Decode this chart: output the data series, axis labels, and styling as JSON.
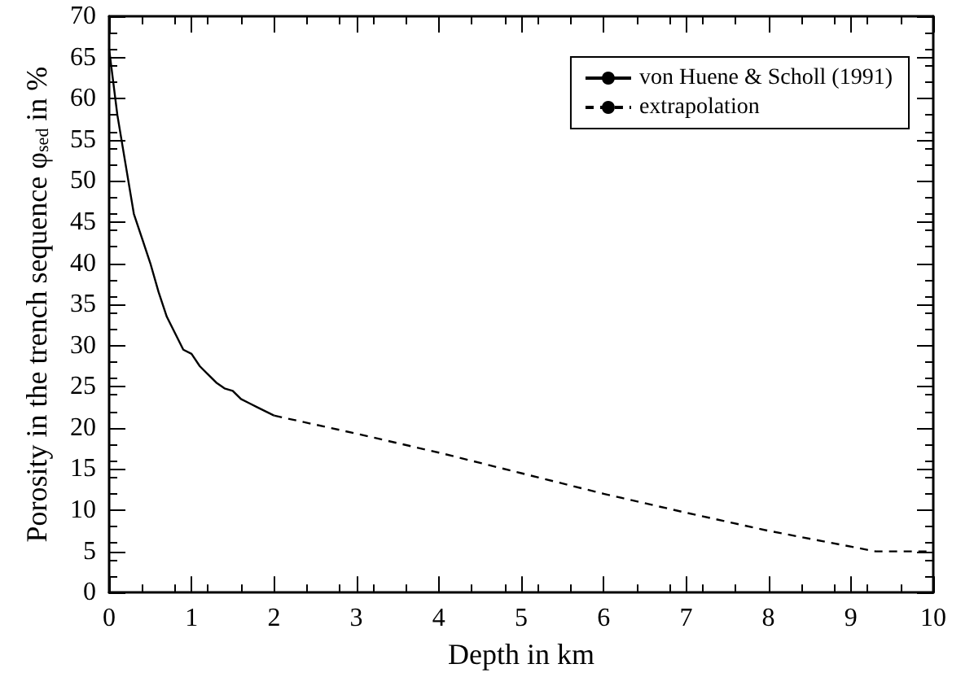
{
  "chart_data": {
    "type": "line",
    "xlabel": "Depth in km",
    "ylabel": "Porosity in the trench sequence φ$_{sed}$ in %",
    "xlim": [
      0,
      10
    ],
    "xticks": [
      0,
      1,
      2,
      3,
      4,
      5,
      6,
      7,
      8,
      9,
      10
    ],
    "ylim": [
      0,
      70
    ],
    "yticks": [
      0,
      5,
      10,
      15,
      20,
      25,
      30,
      35,
      40,
      45,
      50,
      55,
      60,
      65,
      70
    ],
    "legend": "top right",
    "grid": false,
    "marker": "none",
    "series": [
      {
        "name": "von Huene & Scholl (1991)",
        "color": "#000000",
        "line_style": "solid",
        "x": [
          0,
          0.05,
          0.1,
          0.2,
          0.3,
          0.4,
          0.5,
          0.6,
          0.7,
          0.8,
          0.9,
          1.0,
          1.1,
          1.2,
          1.3,
          1.4,
          1.5,
          1.6,
          1.7,
          1.8,
          1.9,
          2.0
        ],
        "values": [
          66,
          62,
          58,
          52,
          46,
          43,
          40,
          36.5,
          33.5,
          31.5,
          29.5,
          29,
          27.5,
          26.5,
          25.5,
          24.8,
          24.5,
          23.5,
          23,
          22.5,
          22,
          21.5
        ]
      },
      {
        "name": "extrapolation",
        "color": "#000000",
        "line_style": "dashed",
        "x": [
          2.0,
          3,
          4,
          5,
          6,
          7,
          8,
          9.3,
          10
        ],
        "values": [
          21.5,
          19.3,
          17,
          14.5,
          12,
          9.7,
          7.5,
          5,
          5
        ]
      }
    ]
  }
}
